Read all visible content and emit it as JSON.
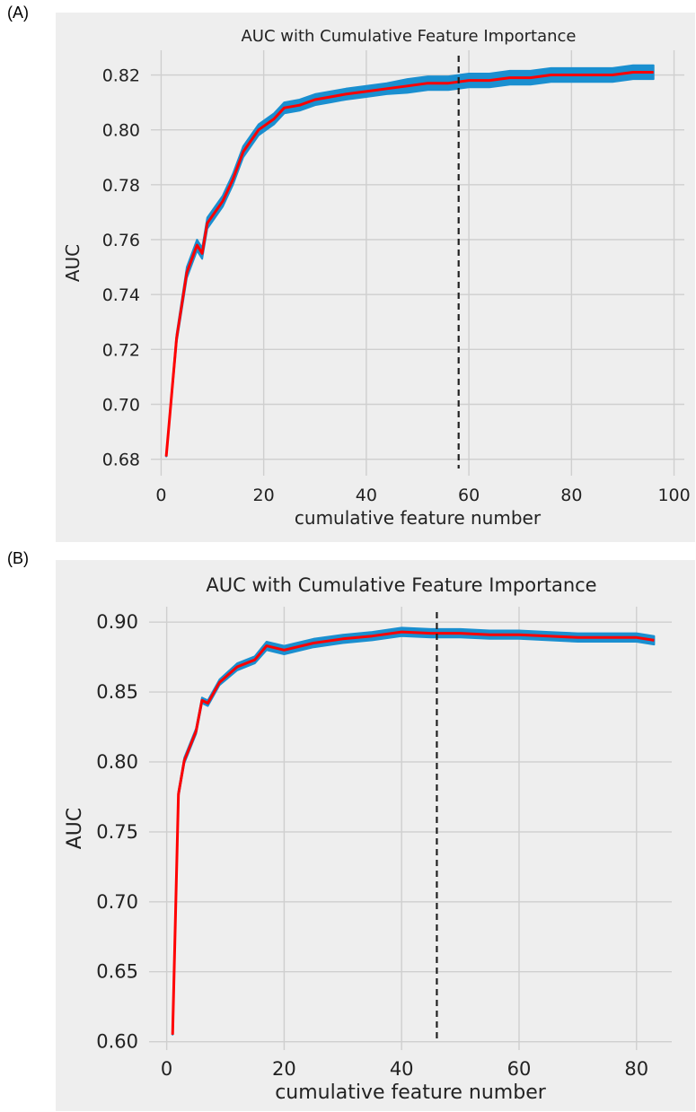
{
  "panels": [
    {
      "label": "(A)"
    },
    {
      "label": "(B)"
    }
  ],
  "colors": {
    "background": "#eeeeee",
    "grid": "#cfcfcf",
    "mean_line": "#ff0000",
    "band": "#1a8fd0",
    "cutoff_line": "#222222"
  },
  "chart_data": [
    {
      "type": "line",
      "title": "AUC with Cumulative Feature Importance",
      "xlabel": "cumulative feature number",
      "ylabel": "AUC",
      "xlim": [
        -2,
        102
      ],
      "ylim": [
        0.674,
        0.829
      ],
      "xticks": [
        0,
        20,
        40,
        60,
        80,
        100
      ],
      "yticks": [
        0.68,
        0.7,
        0.72,
        0.74,
        0.76,
        0.78,
        0.8,
        0.82
      ],
      "ytick_labels": [
        "0.68",
        "0.70",
        "0.72",
        "0.74",
        "0.76",
        "0.78",
        "0.80",
        "0.82"
      ],
      "grid": true,
      "cutoff_x": 58,
      "series": [
        {
          "x": [
            1,
            3,
            5,
            7,
            8,
            9,
            12,
            14,
            16,
            19,
            22,
            24,
            27,
            30,
            33,
            36,
            40,
            44,
            48,
            52,
            56,
            60,
            64,
            68,
            72,
            76,
            80,
            84,
            88,
            92,
            96
          ],
          "values": [
            0.681,
            0.724,
            0.748,
            0.758,
            0.755,
            0.766,
            0.774,
            0.782,
            0.792,
            0.8,
            0.804,
            0.808,
            0.809,
            0.811,
            0.812,
            0.813,
            0.814,
            0.815,
            0.816,
            0.817,
            0.817,
            0.818,
            0.818,
            0.819,
            0.819,
            0.82,
            0.82,
            0.82,
            0.82,
            0.821,
            0.821
          ],
          "band": [
            0.0,
            0.0015,
            0.002,
            0.002,
            0.002,
            0.002,
            0.002,
            0.002,
            0.002,
            0.002,
            0.002,
            0.002,
            0.002,
            0.002,
            0.002,
            0.002,
            0.002,
            0.002,
            0.0025,
            0.0025,
            0.0025,
            0.0025,
            0.0025,
            0.0025,
            0.0025,
            0.0025,
            0.0025,
            0.0025,
            0.0025,
            0.0025,
            0.0025
          ]
        }
      ]
    },
    {
      "type": "line",
      "title": "AUC with Cumulative Feature Importance",
      "xlabel": "cumulative feature number",
      "ylabel": "AUC",
      "xlim": [
        -3,
        86
      ],
      "ylim": [
        0.594,
        0.911
      ],
      "xticks": [
        0,
        20,
        40,
        60,
        80
      ],
      "yticks": [
        0.6,
        0.65,
        0.7,
        0.75,
        0.8,
        0.85,
        0.9
      ],
      "ytick_labels": [
        "0.60",
        "0.65",
        "0.70",
        "0.75",
        "0.80",
        "0.85",
        "0.90"
      ],
      "grid": true,
      "cutoff_x": 46,
      "series": [
        {
          "x": [
            1,
            2,
            3,
            5,
            6,
            7,
            9,
            12,
            15,
            17,
            20,
            25,
            30,
            35,
            40,
            45,
            50,
            55,
            60,
            65,
            70,
            75,
            80,
            83
          ],
          "values": [
            0.605,
            0.777,
            0.801,
            0.822,
            0.844,
            0.842,
            0.857,
            0.868,
            0.873,
            0.883,
            0.88,
            0.885,
            0.888,
            0.89,
            0.893,
            0.892,
            0.892,
            0.891,
            0.891,
            0.89,
            0.889,
            0.889,
            0.889,
            0.887
          ],
          "band": [
            0.0,
            0.002,
            0.002,
            0.002,
            0.002,
            0.002,
            0.002,
            0.0025,
            0.0025,
            0.003,
            0.003,
            0.003,
            0.003,
            0.003,
            0.003,
            0.003,
            0.003,
            0.003,
            0.003,
            0.003,
            0.003,
            0.003,
            0.003,
            0.003
          ]
        }
      ]
    }
  ]
}
